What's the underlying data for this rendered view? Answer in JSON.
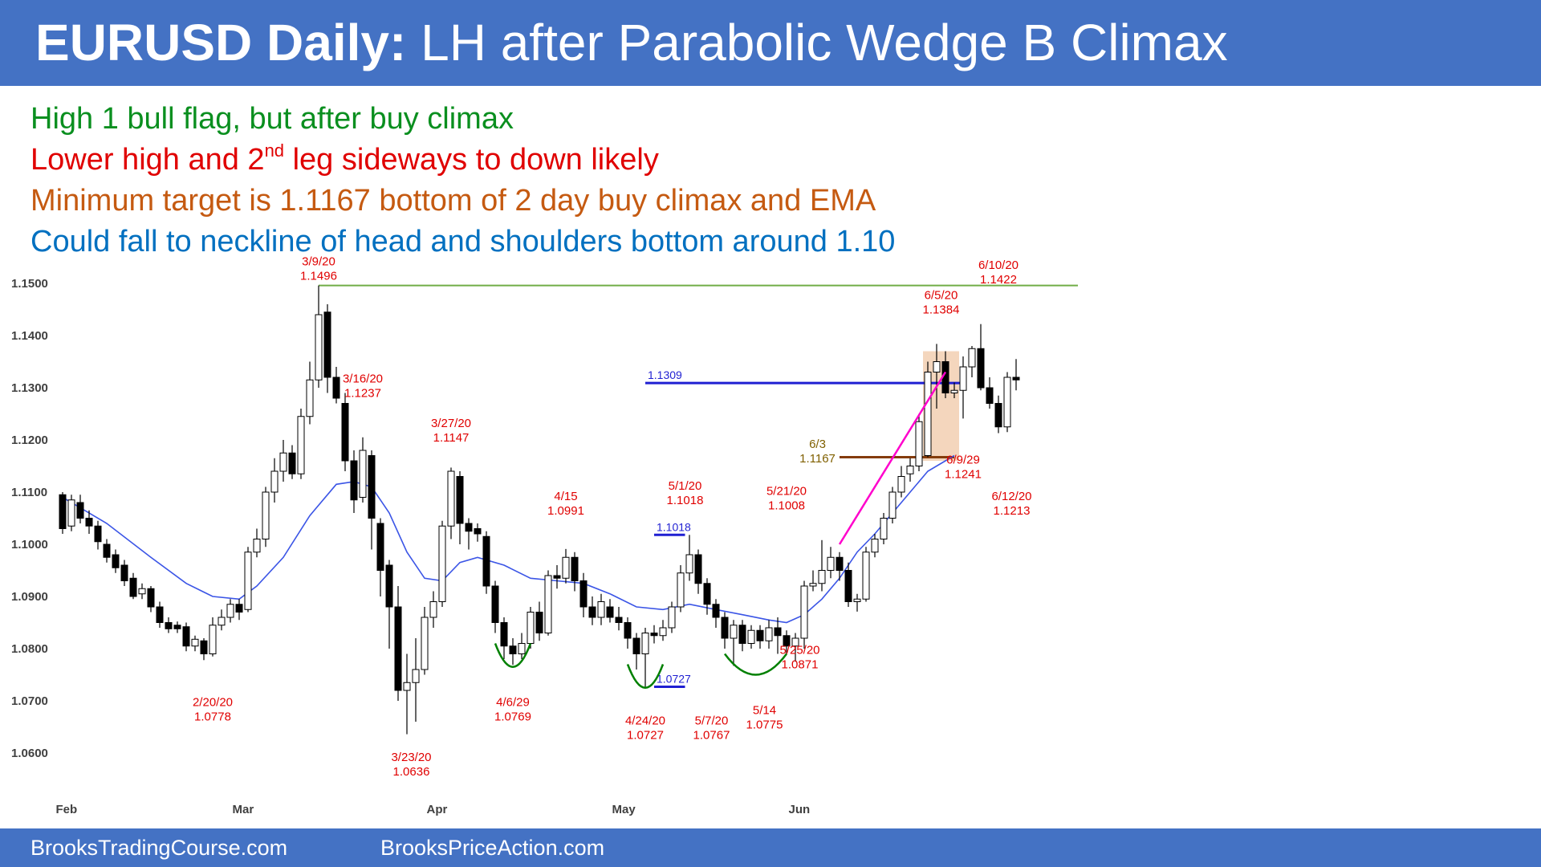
{
  "title": {
    "bold": "EURUSD Daily:",
    "rest": " LH after Parabolic Wedge B Climax"
  },
  "notes": [
    {
      "text": "High 1 bull flag, but after buy climax",
      "color": "#0a8f1f"
    },
    {
      "text_before": "Lower high and 2",
      "sup": "nd",
      "text_after": " leg sideways to down likely",
      "color": "#e00000"
    },
    {
      "text": "Minimum target is 1.1167 bottom of 2 day buy climax and EMA",
      "color": "#c55a11"
    },
    {
      "text": "Could fall to neckline of head and shoulders bottom around 1.10",
      "color": "#0070c0"
    }
  ],
  "footer": {
    "left": "BrooksTradingCourse.com",
    "right": "BrooksPriceAction.com"
  },
  "colors": {
    "candle_outline": "#000000",
    "bear_fill": "#000000",
    "bull_fill": "#ffffff",
    "ema": "#3b55e6",
    "resistance_green": "#70ad47",
    "level_blue": "#1f1fd2",
    "level_brown": "#843c0c",
    "label_red": "#e00000",
    "label_brown": "#806000",
    "label_blue": "#1f1fd2",
    "wedge_magenta": "#ff00cc",
    "climax_box": "#f2cfb1",
    "arc_green": "#008000"
  },
  "chart_data": {
    "type": "candlestick",
    "title": "EURUSD Daily",
    "ylim": [
      1.056,
      1.152
    ],
    "yticks": [
      "1.1500",
      "1.1400",
      "1.1300",
      "1.1200",
      "1.1100",
      "1.1000",
      "1.0900",
      "1.0800",
      "1.0700",
      "1.0600"
    ],
    "ytick_values": [
      1.15,
      1.14,
      1.13,
      1.12,
      1.11,
      1.1,
      1.09,
      1.08,
      1.07,
      1.06
    ],
    "month_labels": [
      {
        "label": "Feb",
        "index": 0.5
      },
      {
        "label": "Mar",
        "index": 20.5
      },
      {
        "label": "Apr",
        "index": 42.5
      },
      {
        "label": "May",
        "index": 63.5
      },
      {
        "label": "Jun",
        "index": 83.5
      }
    ],
    "candles": [
      [
        1.1095,
        1.103,
        1.11,
        1.102
      ],
      [
        1.1035,
        1.1085,
        1.1095,
        1.1025
      ],
      [
        1.108,
        1.105,
        1.1095,
        1.104
      ],
      [
        1.105,
        1.1035,
        1.1065,
        1.102
      ],
      [
        1.1035,
        1.1005,
        1.1045,
        1.099
      ],
      [
        1.1,
        1.0975,
        1.101,
        1.0965
      ],
      [
        1.098,
        1.0955,
        1.099,
        1.0945
      ],
      [
        1.096,
        1.093,
        1.097,
        1.092
      ],
      [
        1.0935,
        1.09,
        1.0945,
        1.0895
      ],
      [
        1.0905,
        1.0915,
        1.0925,
        1.0895
      ],
      [
        1.0915,
        1.088,
        1.092,
        1.087
      ],
      [
        1.088,
        1.085,
        1.089,
        1.084
      ],
      [
        1.085,
        1.0838,
        1.086,
        1.083
      ],
      [
        1.0845,
        1.0838,
        1.0852,
        1.083
      ],
      [
        1.0842,
        1.0805,
        1.085,
        1.0795
      ],
      [
        1.0805,
        1.0818,
        1.0825,
        1.0795
      ],
      [
        1.0815,
        1.079,
        1.082,
        1.0778
      ],
      [
        1.079,
        1.0845,
        1.086,
        1.0785
      ],
      [
        1.0845,
        1.086,
        1.0875,
        1.0835
      ],
      [
        1.086,
        1.0885,
        1.0895,
        1.085
      ],
      [
        1.0885,
        1.087,
        1.0895,
        1.0855
      ],
      [
        1.0875,
        1.0985,
        1.0995,
        1.087
      ],
      [
        1.0985,
        1.101,
        1.103,
        1.0975
      ],
      [
        1.101,
        1.11,
        1.111,
        1.0995
      ],
      [
        1.11,
        1.114,
        1.1165,
        1.108
      ],
      [
        1.114,
        1.1175,
        1.12,
        1.112
      ],
      [
        1.1175,
        1.1135,
        1.119,
        1.1125
      ],
      [
        1.1135,
        1.1245,
        1.126,
        1.1125
      ],
      [
        1.1245,
        1.1315,
        1.135,
        1.123
      ],
      [
        1.1315,
        1.144,
        1.1496,
        1.13
      ],
      [
        1.1445,
        1.132,
        1.146,
        1.129
      ],
      [
        1.132,
        1.128,
        1.134,
        1.127
      ],
      [
        1.127,
        1.116,
        1.129,
        1.114
      ],
      [
        1.116,
        1.1085,
        1.118,
        1.106
      ],
      [
        1.109,
        1.118,
        1.1205,
        1.108
      ],
      [
        1.117,
        1.105,
        1.118,
        1.099
      ],
      [
        1.104,
        1.095,
        1.105,
        1.09
      ],
      [
        1.096,
        1.088,
        1.097,
        1.08
      ],
      [
        1.088,
        1.072,
        1.092,
        1.07
      ],
      [
        1.072,
        1.0735,
        1.079,
        1.0636
      ],
      [
        1.0735,
        1.076,
        1.082,
        1.066
      ],
      [
        1.076,
        1.086,
        1.088,
        1.075
      ],
      [
        1.086,
        1.089,
        1.091,
        1.084
      ],
      [
        1.089,
        1.1035,
        1.1045,
        1.088
      ],
      [
        1.1035,
        1.114,
        1.1147,
        1.101
      ],
      [
        1.113,
        1.104,
        1.114,
        1.1
      ],
      [
        1.104,
        1.1025,
        1.105,
        1.099
      ],
      [
        1.103,
        1.102,
        1.104,
        1.1005
      ],
      [
        1.1015,
        1.092,
        1.1025,
        1.0905
      ],
      [
        1.092,
        1.085,
        1.093,
        1.083
      ],
      [
        1.085,
        1.0805,
        1.086,
        1.078
      ],
      [
        1.0805,
        1.079,
        1.082,
        1.0769
      ],
      [
        1.079,
        1.081,
        1.083,
        1.078
      ],
      [
        1.081,
        1.087,
        1.088,
        1.08
      ],
      [
        1.087,
        1.083,
        1.089,
        1.0815
      ],
      [
        1.083,
        1.094,
        1.095,
        1.0825
      ],
      [
        1.094,
        1.0935,
        1.096,
        1.0915
      ],
      [
        1.0935,
        1.0975,
        1.0991,
        1.0925
      ],
      [
        1.0975,
        1.093,
        1.0985,
        1.091
      ],
      [
        1.093,
        1.088,
        1.0945,
        1.086
      ],
      [
        1.088,
        1.086,
        1.09,
        1.0845
      ],
      [
        1.086,
        1.089,
        1.0905,
        1.0845
      ],
      [
        1.088,
        1.086,
        1.0895,
        1.085
      ],
      [
        1.086,
        1.085,
        1.088,
        1.0835
      ],
      [
        1.085,
        1.082,
        1.086,
        1.08
      ],
      [
        1.082,
        1.079,
        1.083,
        1.076
      ],
      [
        1.079,
        1.083,
        1.084,
        1.0727
      ],
      [
        1.083,
        1.0825,
        1.0845,
        1.081
      ],
      [
        1.0825,
        1.084,
        1.0855,
        1.0815
      ],
      [
        1.084,
        1.088,
        1.089,
        1.083
      ],
      [
        1.088,
        1.0945,
        1.096,
        1.087
      ],
      [
        1.0945,
        1.098,
        1.1018,
        1.093
      ],
      [
        1.098,
        1.0925,
        1.099,
        1.0905
      ],
      [
        1.0925,
        1.0885,
        1.0935,
        1.0865
      ],
      [
        1.0885,
        1.086,
        1.0895,
        1.084
      ],
      [
        1.086,
        1.082,
        1.087,
        1.08
      ],
      [
        1.082,
        1.0845,
        1.0855,
        1.0767
      ],
      [
        1.0845,
        1.081,
        1.0855,
        1.0795
      ],
      [
        1.081,
        1.0835,
        1.0845,
        1.08
      ],
      [
        1.0835,
        1.0815,
        1.0845,
        1.08
      ],
      [
        1.0815,
        1.084,
        1.0855,
        1.08
      ],
      [
        1.084,
        1.0825,
        1.086,
        1.079
      ],
      [
        1.0825,
        1.0805,
        1.0835,
        1.079
      ],
      [
        1.0805,
        1.082,
        1.083,
        1.0775
      ],
      [
        1.082,
        1.092,
        1.093,
        1.08
      ],
      [
        1.092,
        1.0925,
        1.095,
        1.091
      ],
      [
        1.0925,
        1.095,
        1.1008,
        1.091
      ],
      [
        1.095,
        1.0975,
        1.0995,
        1.0935
      ],
      [
        1.0975,
        1.095,
        1.0985,
        1.093
      ],
      [
        1.095,
        1.089,
        1.0965,
        1.088
      ],
      [
        1.089,
        1.0895,
        1.0905,
        1.0871
      ],
      [
        1.0895,
        1.0985,
        1.0995,
        1.089
      ],
      [
        1.0985,
        1.101,
        1.102,
        1.0975
      ],
      [
        1.101,
        1.105,
        1.106,
        1.1
      ],
      [
        1.105,
        1.11,
        1.111,
        1.104
      ],
      [
        1.11,
        1.113,
        1.115,
        1.109
      ],
      [
        1.1135,
        1.115,
        1.1165,
        1.112
      ],
      [
        1.115,
        1.1235,
        1.125,
        1.114
      ],
      [
        1.117,
        1.133,
        1.135,
        1.1167
      ],
      [
        1.133,
        1.135,
        1.1384,
        1.126
      ],
      [
        1.135,
        1.129,
        1.137,
        1.128
      ],
      [
        1.129,
        1.1295,
        1.131,
        1.128
      ],
      [
        1.1295,
        1.134,
        1.136,
        1.1241
      ],
      [
        1.134,
        1.1375,
        1.138,
        1.132
      ],
      [
        1.1375,
        1.13,
        1.1422,
        1.1295
      ],
      [
        1.13,
        1.127,
        1.132,
        1.126
      ],
      [
        1.127,
        1.1225,
        1.1285,
        1.1213
      ],
      [
        1.1225,
        1.132,
        1.133,
        1.1215
      ],
      [
        1.132,
        1.1315,
        1.1355,
        1.1295
      ]
    ],
    "ema_points": [
      [
        0,
        1.109
      ],
      [
        5,
        1.104
      ],
      [
        10,
        1.0975
      ],
      [
        14,
        1.0925
      ],
      [
        17,
        1.09
      ],
      [
        20,
        1.0895
      ],
      [
        22,
        1.092
      ],
      [
        25,
        1.0975
      ],
      [
        28,
        1.1055
      ],
      [
        31,
        1.1115
      ],
      [
        33,
        1.112
      ],
      [
        35,
        1.111
      ],
      [
        37,
        1.106
      ],
      [
        39,
        1.0985
      ],
      [
        41,
        1.0935
      ],
      [
        43,
        1.093
      ],
      [
        45,
        1.0965
      ],
      [
        47,
        1.0975
      ],
      [
        50,
        1.096
      ],
      [
        53,
        1.0935
      ],
      [
        56,
        1.093
      ],
      [
        59,
        1.0925
      ],
      [
        62,
        1.0905
      ],
      [
        65,
        1.088
      ],
      [
        68,
        1.0875
      ],
      [
        71,
        1.0885
      ],
      [
        74,
        1.0875
      ],
      [
        77,
        1.0865
      ],
      [
        80,
        1.0855
      ],
      [
        82,
        1.085
      ],
      [
        84,
        1.0865
      ],
      [
        86,
        1.0895
      ],
      [
        88,
        1.0935
      ],
      [
        90,
        1.0985
      ],
      [
        92,
        1.102
      ],
      [
        94,
        1.106
      ],
      [
        96,
        1.11
      ],
      [
        98,
        1.114
      ],
      [
        100,
        1.116
      ],
      [
        101,
        1.117
      ]
    ],
    "lines": [
      {
        "name": "resistance-1.1496",
        "price": 1.1496,
        "from": 29,
        "to": 115,
        "color_key": "resistance_green"
      },
      {
        "name": "level-1.1309",
        "price": 1.1309,
        "from": 66,
        "to": 102,
        "color_key": "level_blue",
        "label": "1.1309"
      },
      {
        "name": "level-1.1167",
        "price": 1.1167,
        "from": 88,
        "to": 101,
        "color_key": "level_brown"
      },
      {
        "name": "level-1.1018",
        "price": 1.1018,
        "from": 67,
        "to": 70.5,
        "color_key": "level_blue",
        "label": "1.1018"
      },
      {
        "name": "level-1.0727",
        "price": 1.0727,
        "from": 67,
        "to": 70.5,
        "color_key": "level_blue",
        "label": "1.0727"
      }
    ],
    "wedge_line": {
      "from": [
        88,
        1.1
      ],
      "to": [
        100,
        1.133
      ]
    },
    "climax_box": {
      "from": 98,
      "to": 101,
      "top": 1.137,
      "bottom": 1.116
    },
    "shoulder_arcs": [
      {
        "name": "left-shoulder-arc",
        "from": 49,
        "to": 53,
        "price": 1.081,
        "depth": 0.0045
      },
      {
        "name": "head-arc",
        "from": 64,
        "to": 68,
        "price": 1.077,
        "depth": 0.0045
      },
      {
        "name": "right-shoulder-arc",
        "from": 75,
        "to": 82,
        "price": 1.079,
        "depth": 0.004
      }
    ],
    "annotations": [
      {
        "name": "label-3-9-20",
        "lines": [
          "3/9/20",
          "1.1496"
        ],
        "index": 29,
        "price": 1.1535,
        "color_key": "label_red"
      },
      {
        "name": "label-3-16-20",
        "lines": [
          "3/16/20",
          "1.1237"
        ],
        "index": 34,
        "price": 1.131,
        "color_key": "label_red"
      },
      {
        "name": "label-3-27-20",
        "lines": [
          "3/27/20",
          "1.1147"
        ],
        "index": 44,
        "price": 1.1225,
        "color_key": "label_red"
      },
      {
        "name": "label-4-15",
        "lines": [
          "4/15",
          "1.0991"
        ],
        "index": 57,
        "price": 1.1085,
        "color_key": "label_red"
      },
      {
        "name": "label-5-1-20",
        "lines": [
          "5/1/20",
          "1.1018"
        ],
        "index": 70.5,
        "price": 1.1105,
        "color_key": "label_red"
      },
      {
        "name": "label-5-21-20",
        "lines": [
          "5/21/20",
          "1.1008"
        ],
        "index": 82,
        "price": 1.1095,
        "color_key": "label_red"
      },
      {
        "name": "label-6-5-20",
        "lines": [
          "6/5/20",
          "1.1384"
        ],
        "index": 99.5,
        "price": 1.147,
        "color_key": "label_red"
      },
      {
        "name": "label-6-10-20",
        "lines": [
          "6/10/20",
          "1.1422"
        ],
        "index": 106,
        "price": 1.1528,
        "color_key": "label_red"
      },
      {
        "name": "label-6-9-29",
        "lines": [
          "6/9/29",
          "1.1241"
        ],
        "index": 102,
        "price": 1.1155,
        "color_key": "label_red"
      },
      {
        "name": "label-6-12-20",
        "lines": [
          "6/12/20",
          "1.1213"
        ],
        "index": 107.5,
        "price": 1.1085,
        "color_key": "label_red"
      },
      {
        "name": "label-6-3",
        "lines": [
          "6/3",
          "1.1167"
        ],
        "index": 85.5,
        "price": 1.1185,
        "color_key": "label_brown"
      },
      {
        "name": "label-5-25-20",
        "lines": [
          "5/25/20",
          "1.0871"
        ],
        "index": 83.5,
        "price": 1.079,
        "color_key": "label_red"
      },
      {
        "name": "label-2-20-20",
        "lines": [
          "2/20/20",
          "1.0778"
        ],
        "index": 17,
        "price": 1.069,
        "color_key": "label_red"
      },
      {
        "name": "label-3-23-20",
        "lines": [
          "3/23/20",
          "1.0636"
        ],
        "index": 39.5,
        "price": 1.0585,
        "color_key": "label_red"
      },
      {
        "name": "label-4-6-29",
        "lines": [
          "4/6/29",
          "1.0769"
        ],
        "index": 51,
        "price": 1.069,
        "color_key": "label_red"
      },
      {
        "name": "label-4-24-20",
        "lines": [
          "4/24/20",
          "1.0727"
        ],
        "index": 66,
        "price": 1.0655,
        "color_key": "label_red"
      },
      {
        "name": "label-5-7-20",
        "lines": [
          "5/7/20",
          "1.0767"
        ],
        "index": 73.5,
        "price": 1.0655,
        "color_key": "label_red"
      },
      {
        "name": "label-5-14",
        "lines": [
          "5/14",
          "1.0775"
        ],
        "index": 79.5,
        "price": 1.0675,
        "color_key": "label_red"
      }
    ]
  }
}
